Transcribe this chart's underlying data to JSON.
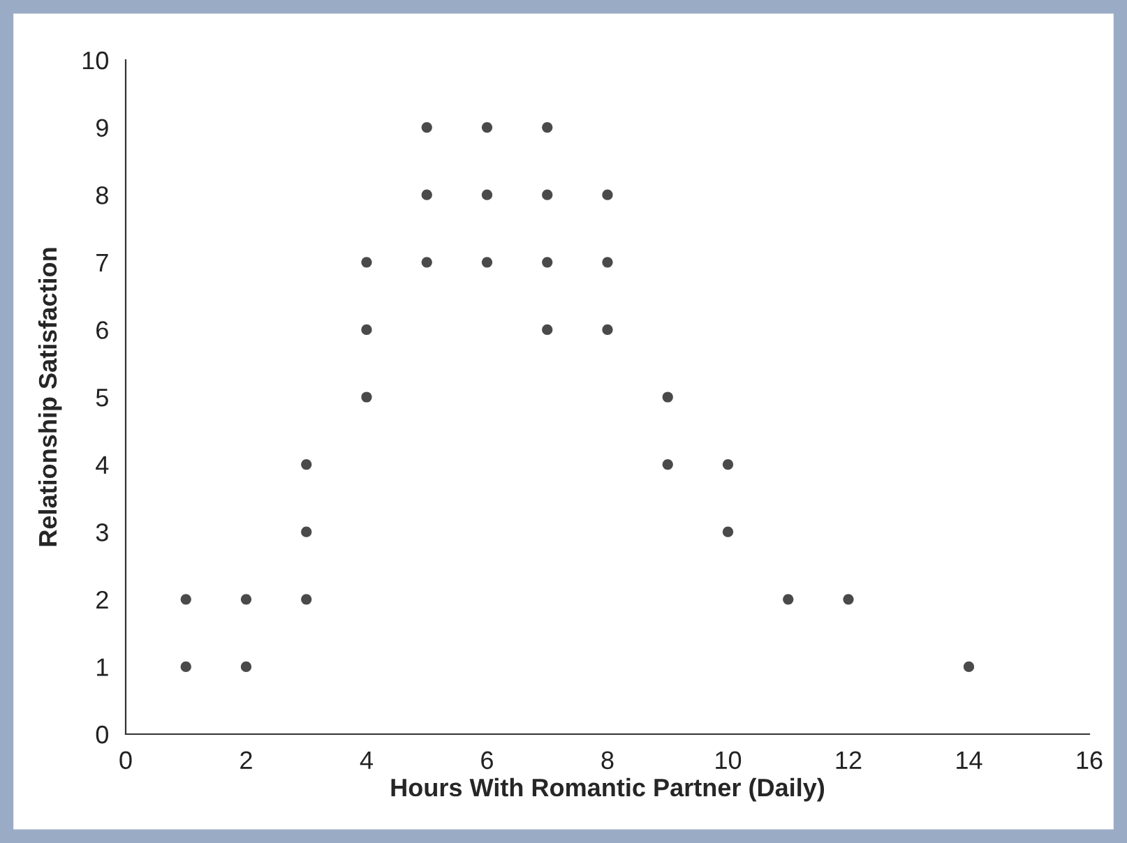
{
  "chart_data": {
    "type": "scatter",
    "xlabel": "Hours With Romantic Partner (Daily)",
    "ylabel": "Relationship Satisfaction",
    "xlim": [
      0,
      16
    ],
    "xticks": [
      0,
      2,
      4,
      6,
      8,
      10,
      12,
      14,
      16
    ],
    "ylim": [
      0,
      10
    ],
    "yticks": [
      0,
      1,
      2,
      3,
      4,
      5,
      6,
      7,
      8,
      9,
      10
    ],
    "grid": false,
    "marker": "circle",
    "series": [
      {
        "color": "#4a4a4a",
        "x": [
          1,
          1,
          2,
          2,
          3,
          3,
          3,
          4,
          4,
          4,
          5,
          5,
          5,
          6,
          6,
          6,
          7,
          7,
          7,
          7,
          8,
          8,
          8,
          9,
          9,
          10,
          10,
          11,
          12,
          14
        ],
        "values": [
          1,
          2,
          1,
          2,
          2,
          3,
          4,
          5,
          6,
          7,
          7,
          8,
          9,
          7,
          8,
          9,
          6,
          7,
          8,
          9,
          6,
          7,
          8,
          4,
          5,
          3,
          4,
          2,
          2,
          1
        ]
      }
    ]
  }
}
